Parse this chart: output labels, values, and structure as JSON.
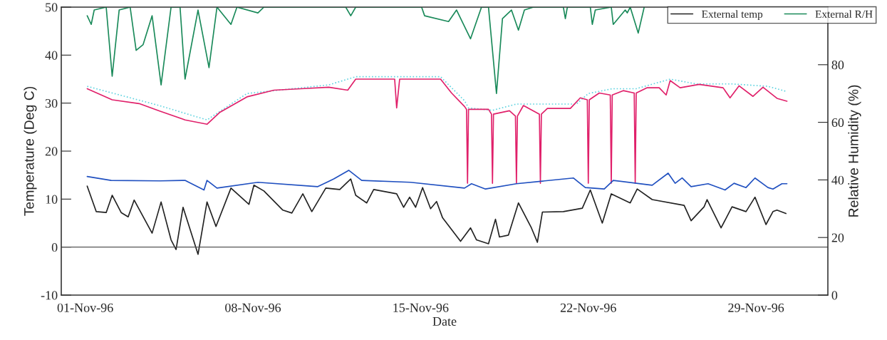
{
  "chart_data": {
    "type": "line",
    "xlabel": "Date",
    "ylabel": "Temperature (Deg C)",
    "y2label": "Relative Humidity (%)",
    "xlim": [
      "1996-10-31T00:00",
      "1996-12-02T00:00"
    ],
    "xticks": [
      {
        "value": "1996-11-01",
        "label": "01-Nov-96"
      },
      {
        "value": "1996-11-08",
        "label": "08-Nov-96"
      },
      {
        "value": "1996-11-15",
        "label": "15-Nov-96"
      },
      {
        "value": "1996-11-22",
        "label": "22-Nov-96"
      },
      {
        "value": "1996-11-29",
        "label": "29-Nov-96"
      }
    ],
    "ylim": [
      -10,
      50
    ],
    "yticks": [
      -10,
      0,
      10,
      20,
      30,
      40,
      50
    ],
    "y2lim": [
      0,
      100
    ],
    "y2ticks": [
      0,
      20,
      40,
      60,
      80
    ],
    "grid": false,
    "legend": "top right",
    "marker": "none",
    "ref_lines": [
      {
        "axis": "y",
        "value": 0,
        "color": "#555555",
        "line_style": "solid"
      }
    ],
    "series": [
      {
        "color": "#5fd3e0",
        "line_style": "dotted",
        "x": [
          "1996-11-01T02:00",
          "1996-11-04T02:00",
          "1996-11-06T02:00",
          "1996-11-07T18:00",
          "1996-11-11T04:00",
          "1996-11-12T07:00",
          "1996-11-15T20:00",
          "1996-11-16T20:00",
          "1996-11-17T00:00",
          "1996-11-18T00:00",
          "1996-11-19T00:00",
          "1996-11-20T00:00",
          "1996-11-21T12:00",
          "1996-11-22T00:00",
          "1996-11-23T00:00",
          "1996-11-24T00:00",
          "1996-11-25T10:00",
          "1996-11-26T12:00",
          "1996-11-28T00:00",
          "1996-11-29T12:00",
          "1996-11-30T07:00"
        ],
        "values": [
          33.5,
          29.5,
          26.5,
          32.0,
          33.8,
          35.5,
          35.5,
          30.5,
          29.0,
          28.5,
          29.8,
          29.8,
          29.8,
          32.0,
          33.0,
          33.0,
          35.0,
          34.0,
          34.0,
          33.5,
          32.4
        ]
      },
      {
        "color": "#e0206a",
        "line_style": "solid",
        "x": [
          "1996-11-01T02:00",
          "1996-11-02T03:00",
          "1996-11-03T06:00",
          "1996-11-04T02:00",
          "1996-11-05T04:00",
          "1996-11-06T02:00",
          "1996-11-06T15:00",
          "1996-11-07T18:00",
          "1996-11-08T21:00",
          "1996-11-10T00:00",
          "1996-11-11T04:00",
          "1996-11-11T23:00",
          "1996-11-12T07:00",
          "1996-11-13T22:00",
          "1996-11-14T00:00",
          "1996-11-14T03:00",
          "1996-11-15T20:00",
          "1996-11-16T07:00",
          "1996-11-16T20:00",
          "1996-11-16T22:00",
          "1996-11-16T23:00",
          "1996-11-17T00:00",
          "1996-11-17T20:00",
          "1996-11-17T23:00",
          "1996-11-18T00:00",
          "1996-11-18T01:00",
          "1996-11-18T17:00",
          "1996-11-18T23:00",
          "1996-11-19T00:00",
          "1996-11-19T01:00",
          "1996-11-19T07:00",
          "1996-11-19T23:00",
          "1996-11-20T00:00",
          "1996-11-20T01:00",
          "1996-11-20T07:00",
          "1996-11-21T06:00",
          "1996-11-21T16:00",
          "1996-11-21T23:00",
          "1996-11-22T00:00",
          "1996-11-22T01:00",
          "1996-11-22T11:00",
          "1996-11-22T22:00",
          "1996-11-22T23:00",
          "1996-11-23T00:00",
          "1996-11-23T11:00",
          "1996-11-23T22:00",
          "1996-11-23T23:00",
          "1996-11-24T00:00",
          "1996-11-24T11:00",
          "1996-11-24T23:00",
          "1996-11-25T06:00",
          "1996-11-25T10:00",
          "1996-11-25T20:00",
          "1996-11-26T15:00",
          "1996-11-27T15:00",
          "1996-11-27T22:00",
          "1996-11-28T07:00",
          "1996-11-28T21:00",
          "1996-11-29T07:00",
          "1996-11-29T21:00",
          "1996-11-30T07:00"
        ],
        "values": [
          33.0,
          30.7,
          29.9,
          28.4,
          26.5,
          25.6,
          28.1,
          31.3,
          32.7,
          33.0,
          33.3,
          32.7,
          35.0,
          35.0,
          29.0,
          35.0,
          35.0,
          32.1,
          29.3,
          28.7,
          13.3,
          28.7,
          28.7,
          27.7,
          13.3,
          27.7,
          28.4,
          27.3,
          13.3,
          27.3,
          29.5,
          27.7,
          13.3,
          27.7,
          28.9,
          28.9,
          31.1,
          30.7,
          13.3,
          30.7,
          32.1,
          31.7,
          13.3,
          31.7,
          32.6,
          32.1,
          13.3,
          32.1,
          33.2,
          33.2,
          31.7,
          34.7,
          33.2,
          33.9,
          33.2,
          31.1,
          33.6,
          31.4,
          33.3,
          31.0,
          30.4
        ]
      },
      {
        "color": "#2050c0",
        "line_style": "solid",
        "x": [
          "1996-11-01T02:00",
          "1996-11-02T02:00",
          "1996-11-04T03:00",
          "1996-11-05T04:00",
          "1996-11-05T23:00",
          "1996-11-06T02:00",
          "1996-11-06T12:00",
          "1996-11-08T05:00",
          "1996-11-10T17:00",
          "1996-11-11T09:00",
          "1996-11-12T00:00",
          "1996-11-12T13:00",
          "1996-11-14T14:00",
          "1996-11-16T20:00",
          "1996-11-17T03:00",
          "1996-11-17T17:00",
          "1996-11-19T00:00",
          "1996-11-21T09:00",
          "1996-11-21T21:00",
          "1996-11-22T16:00",
          "1996-11-23T01:00",
          "1996-11-24T16:00",
          "1996-11-25T08:00",
          "1996-11-25T15:00",
          "1996-11-25T22:00",
          "1996-11-26T07:00",
          "1996-11-27T00:00",
          "1996-11-27T17:00",
          "1996-11-28T02:00",
          "1996-11-28T14:00",
          "1996-11-28T23:00",
          "1996-11-29T12:00",
          "1996-11-29T17:00",
          "1996-11-30T02:00",
          "1996-11-30T07:00"
        ],
        "values": [
          14.7,
          13.9,
          13.8,
          13.9,
          11.9,
          13.9,
          12.3,
          13.5,
          12.6,
          14.2,
          16.0,
          13.9,
          13.5,
          12.3,
          13.2,
          12.1,
          13.2,
          14.4,
          12.4,
          12.1,
          13.9,
          12.9,
          15.4,
          13.3,
          14.4,
          12.6,
          13.2,
          11.9,
          13.3,
          12.4,
          14.4,
          12.4,
          12.1,
          13.2,
          13.2
        ]
      },
      {
        "name": "External temp",
        "color": "#222222",
        "line_style": "solid",
        "x": [
          "1996-11-01T02:00",
          "1996-11-01T11:00",
          "1996-11-01T21:00",
          "1996-11-02T03:00",
          "1996-11-02T12:00",
          "1996-11-02T19:00",
          "1996-11-03T01:00",
          "1996-11-03T19:00",
          "1996-11-04T04:00",
          "1996-11-04T14:00",
          "1996-11-04T19:00",
          "1996-11-05T02:00",
          "1996-11-05T17:00",
          "1996-11-06T02:00",
          "1996-11-06T11:00",
          "1996-11-07T02:00",
          "1996-11-07T20:00",
          "1996-11-08T01:00",
          "1996-11-08T11:00",
          "1996-11-09T06:00",
          "1996-11-09T15:00",
          "1996-11-10T02:00",
          "1996-11-10T11:00",
          "1996-11-11T01:00",
          "1996-11-11T15:00",
          "1996-11-12T02:00",
          "1996-11-12T07:00",
          "1996-11-12T18:00",
          "1996-11-13T01:00",
          "1996-11-14T00:00",
          "1996-11-14T07:00",
          "1996-11-14T13:00",
          "1996-11-14T19:00",
          "1996-11-15T02:00",
          "1996-11-15T10:00",
          "1996-11-15T16:00",
          "1996-11-15T22:00",
          "1996-11-16T16:00",
          "1996-11-17T02:00",
          "1996-11-17T08:00",
          "1996-11-17T20:00",
          "1996-11-18T03:00",
          "1996-11-18T07:00",
          "1996-11-18T16:00",
          "1996-11-19T02:00",
          "1996-11-19T15:00",
          "1996-11-19T21:00",
          "1996-11-20T02:00",
          "1996-11-20T23:00",
          "1996-11-21T18:00",
          "1996-11-22T02:00",
          "1996-11-22T14:00",
          "1996-11-22T23:00",
          "1996-11-23T18:00",
          "1996-11-24T01:00",
          "1996-11-24T16:00",
          "1996-11-26T00:00",
          "1996-11-26T07:00",
          "1996-11-26T20:00",
          "1996-11-26T23:00",
          "1996-11-27T13:00",
          "1996-11-28T00:00",
          "1996-11-28T14:00",
          "1996-11-28T23:00",
          "1996-11-29T10:00",
          "1996-11-29T17:00",
          "1996-11-29T21:00",
          "1996-11-30T06:00"
        ],
        "values": [
          12.7,
          7.4,
          7.2,
          10.8,
          7.2,
          6.3,
          9.8,
          2.9,
          9.4,
          1.5,
          -0.5,
          8.3,
          -1.5,
          9.4,
          4.3,
          12.3,
          8.9,
          12.9,
          11.7,
          7.7,
          7.1,
          11.1,
          7.4,
          12.3,
          12.0,
          14.2,
          10.8,
          9.2,
          12.0,
          11.1,
          8.3,
          10.4,
          8.3,
          12.4,
          8.0,
          9.5,
          6.1,
          1.2,
          4.0,
          1.5,
          0.7,
          5.8,
          2.1,
          2.5,
          9.2,
          4.0,
          1.0,
          7.3,
          7.4,
          8.1,
          11.9,
          5.0,
          11.1,
          9.2,
          12.1,
          9.9,
          8.7,
          5.5,
          8.4,
          9.9,
          4.0,
          8.4,
          7.4,
          10.4,
          4.7,
          7.4,
          7.7,
          7.0
        ]
      },
      {
        "name": "External R/H",
        "color": "#1a8a5a",
        "line_style": "solid",
        "axis": "y2",
        "x": [
          "1996-11-01T02:00",
          "1996-11-01T06:00",
          "1996-11-01T09:00",
          "1996-11-01T21:00",
          "1996-11-02T03:00",
          "1996-11-02T10:00",
          "1996-11-02T21:00",
          "1996-11-03T03:00",
          "1996-11-03T10:00",
          "1996-11-03T19:00",
          "1996-11-04T04:00",
          "1996-11-04T14:00",
          "1996-11-04T23:00",
          "1996-11-05T04:00",
          "1996-11-05T17:00",
          "1996-11-06T04:00",
          "1996-11-06T12:00",
          "1996-11-07T02:00",
          "1996-11-07T08:00",
          "1996-11-08T05:00",
          "1996-11-08T11:00",
          "1996-11-11T21:00",
          "1996-11-12T02:00",
          "1996-11-12T07:00",
          "1996-11-15T01:00",
          "1996-11-15T04:00",
          "1996-11-16T04:00",
          "1996-11-16T12:00",
          "1996-11-17T02:00",
          "1996-11-17T13:00",
          "1996-11-17T20:00",
          "1996-11-18T04:00",
          "1996-11-18T10:00",
          "1996-11-18T19:00",
          "1996-11-19T02:00",
          "1996-11-19T08:00",
          "1996-11-19T17:00",
          "1996-11-20T23:00",
          "1996-11-21T01:00",
          "1996-11-21T03:00",
          "1996-11-22T02:00",
          "1996-11-22T04:00",
          "1996-11-22T07:00",
          "1996-11-22T23:00",
          "1996-11-23T01:00",
          "1996-11-23T13:00",
          "1996-11-23T15:00",
          "1996-11-23T18:00",
          "1996-11-24T02:00",
          "1996-11-24T08:00"
        ],
        "values": [
          97,
          94,
          99,
          100,
          76,
          99,
          100,
          85,
          87,
          97,
          73,
          100,
          100,
          75,
          99,
          79,
          100,
          94,
          100,
          98,
          100,
          100,
          97,
          100,
          100,
          97,
          95,
          99,
          89,
          100,
          100,
          70,
          96,
          99,
          92,
          99,
          100,
          100,
          96,
          100,
          100,
          94,
          99,
          100,
          94,
          99,
          98,
          100,
          91,
          100
        ]
      }
    ]
  }
}
